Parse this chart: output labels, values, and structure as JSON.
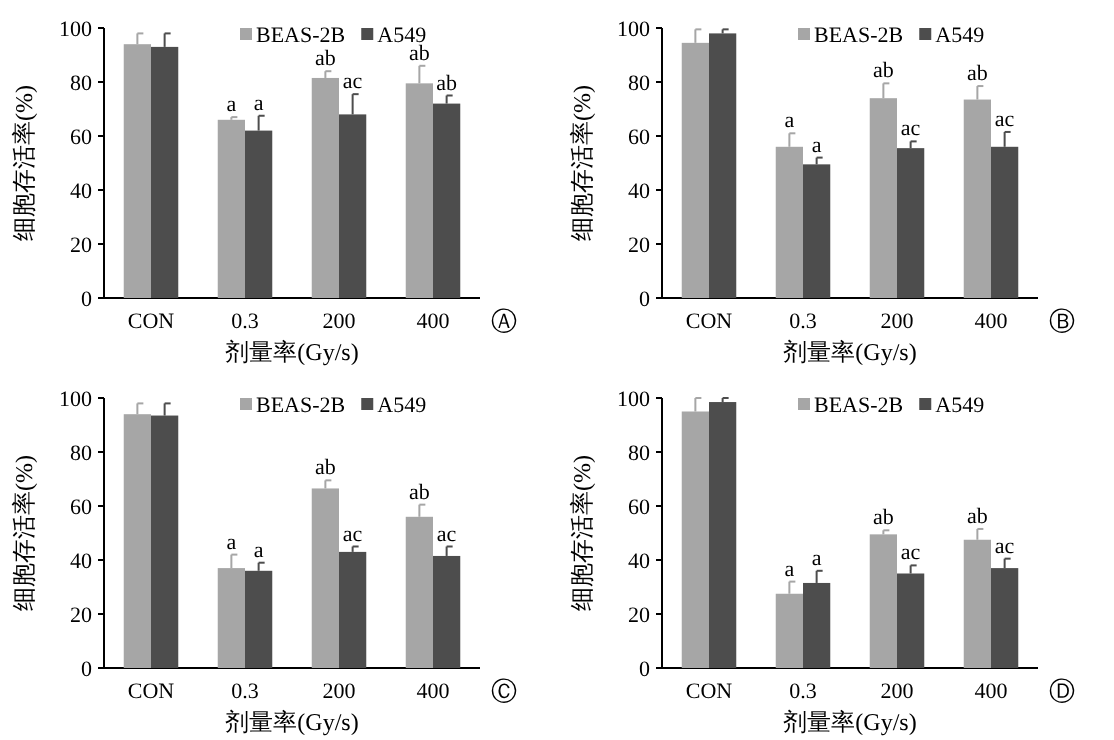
{
  "chart_data": [
    {
      "type": "bar",
      "xlabel": "剂量率(Gy/s)",
      "ylabel": "细胞存活率(%)",
      "categories": [
        "CON",
        "0.3",
        "200",
        "400"
      ],
      "ylim": [
        0,
        100
      ],
      "yticks": [
        0,
        20,
        40,
        60,
        80,
        100
      ],
      "legend": "top right",
      "series": [
        {
          "name": "BEAS-2B",
          "color": "#a6a6a6",
          "values": [
            94,
            66,
            81.5,
            79.5
          ],
          "errors": [
            4,
            1,
            2.5,
            6.5
          ]
        },
        {
          "name": "A549",
          "color": "#4d4d4d",
          "values": [
            93,
            62,
            68,
            72
          ],
          "errors": [
            5,
            5.5,
            7.5,
            3
          ]
        }
      ],
      "annotations": [
        {
          "text": "a",
          "x": "0.3",
          "y": 67
        },
        {
          "text": "a",
          "x": "0.3",
          "y": 67.5
        },
        {
          "text": "ab",
          "x": "200",
          "y": 84
        },
        {
          "text": "ac",
          "x": "200",
          "y": 75.5
        },
        {
          "text": "ab",
          "x": "400",
          "y": 86
        },
        {
          "text": "ab",
          "x": "400",
          "y": 75
        },
        "Ⓐ"
      ]
    },
    {
      "type": "bar",
      "xlabel": "剂量率(Gy/s)",
      "ylabel": "细胞存活率(%)",
      "categories": [
        "CON",
        "0.3",
        "200",
        "400"
      ],
      "ylim": [
        0,
        100
      ],
      "yticks": [
        0,
        20,
        40,
        60,
        80,
        100
      ],
      "legend": "top right",
      "series": [
        {
          "name": "BEAS-2B",
          "color": "#a6a6a6",
          "values": [
            94.5,
            56,
            74,
            73.5
          ],
          "errors": [
            5,
            5,
            5.5,
            5
          ]
        },
        {
          "name": "A549",
          "color": "#4d4d4d",
          "values": [
            98,
            49.5,
            55.5,
            56
          ],
          "errors": [
            1.5,
            2.5,
            2.5,
            5.5
          ]
        }
      ],
      "annotations": [
        {
          "text": "a",
          "x": "0.3",
          "y": 61
        },
        {
          "text": "a",
          "x": "0.3",
          "y": 52
        },
        {
          "text": "ab",
          "x": "200",
          "y": 79.5
        },
        {
          "text": "ac",
          "x": "200",
          "y": 58
        },
        {
          "text": "ab",
          "x": "400",
          "y": 78.5
        },
        {
          "text": "ac",
          "x": "400",
          "y": 61.5
        },
        "Ⓑ"
      ]
    },
    {
      "type": "bar",
      "xlabel": "剂量率(Gy/s)",
      "ylabel": "细胞存活率(%)",
      "categories": [
        "CON",
        "0.3",
        "200",
        "400"
      ],
      "ylim": [
        0,
        100
      ],
      "yticks": [
        0,
        20,
        40,
        60,
        80,
        100
      ],
      "legend": "top right",
      "series": [
        {
          "name": "BEAS-2B",
          "color": "#a6a6a6",
          "values": [
            94,
            37,
            66.5,
            56
          ],
          "errors": [
            4,
            5,
            3,
            4.5
          ]
        },
        {
          "name": "A549",
          "color": "#4d4d4d",
          "values": [
            93.5,
            36,
            43,
            41.5
          ],
          "errors": [
            4.5,
            3,
            2,
            3.5
          ]
        }
      ],
      "annotations": [
        {
          "text": "a",
          "x": "0.3",
          "y": 42
        },
        {
          "text": "a",
          "x": "0.3",
          "y": 39
        },
        {
          "text": "ab",
          "x": "200",
          "y": 69.5
        },
        {
          "text": "ac",
          "x": "200",
          "y": 45
        },
        {
          "text": "ab",
          "x": "400",
          "y": 60.5
        },
        {
          "text": "ac",
          "x": "400",
          "y": 45
        },
        "Ⓒ"
      ]
    },
    {
      "type": "bar",
      "xlabel": "剂量率(Gy/s)",
      "ylabel": "细胞存活率(%)",
      "categories": [
        "CON",
        "0.3",
        "200",
        "400"
      ],
      "ylim": [
        0,
        100
      ],
      "yticks": [
        0,
        20,
        40,
        60,
        80,
        100
      ],
      "legend": "top right",
      "series": [
        {
          "name": "BEAS-2B",
          "color": "#a6a6a6",
          "values": [
            95,
            27.5,
            49.5,
            47.5
          ],
          "errors": [
            5,
            4.5,
            1.5,
            4
          ]
        },
        {
          "name": "A549",
          "color": "#4d4d4d",
          "values": [
            98.5,
            31.5,
            35,
            37
          ],
          "errors": [
            1.5,
            4.5,
            3,
            3.5
          ]
        }
      ],
      "annotations": [
        {
          "text": "a",
          "x": "0.3",
          "y": 32
        },
        {
          "text": "a",
          "x": "0.3",
          "y": 31.5
        },
        {
          "text": "ab",
          "x": "200",
          "y": 51
        },
        {
          "text": "ac",
          "x": "200",
          "y": 38
        },
        {
          "text": "ab",
          "x": "400",
          "y": 51.5
        },
        {
          "text": "ac",
          "x": "400",
          "y": 40.5
        },
        "Ⓓ"
      ]
    }
  ]
}
